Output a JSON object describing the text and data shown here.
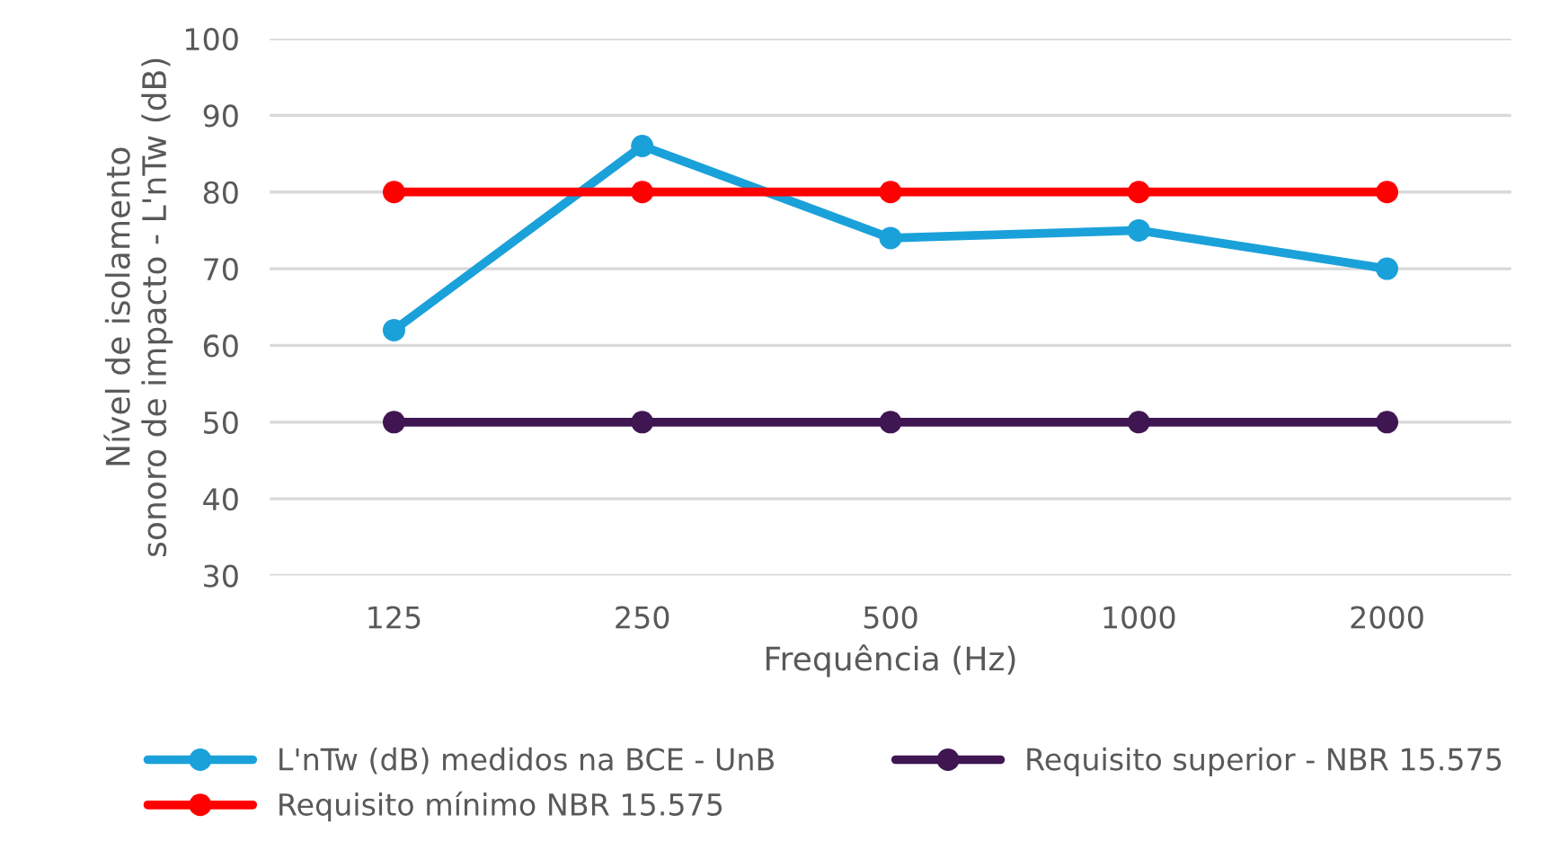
{
  "chart_data": {
    "type": "line",
    "xlabel": "Frequência (Hz)",
    "ylabel": "Nível de isolamento\nsonoro de impacto - L'nTw (dB)",
    "categories": [
      "125",
      "250",
      "500",
      "1000",
      "2000"
    ],
    "series": [
      {
        "name": "L'nTw (dB) medidos na BCE - UnB",
        "color": "#1ba1d9",
        "values": [
          62,
          86,
          74,
          75,
          70
        ]
      },
      {
        "name": "Requisito mínimo NBR 15.575",
        "color": "#ff0000",
        "values": [
          80,
          80,
          80,
          80,
          80
        ]
      },
      {
        "name": "Requisito superior - NBR 15.575",
        "color": "#3f1651",
        "values": [
          50,
          50,
          50,
          50,
          50
        ]
      }
    ],
    "ylim": [
      30,
      100
    ],
    "yticks": [
      30,
      40,
      50,
      60,
      70,
      80,
      90,
      100
    ],
    "grid": "y",
    "legend": "bottom",
    "marker": "circle",
    "line_style": "solid"
  }
}
